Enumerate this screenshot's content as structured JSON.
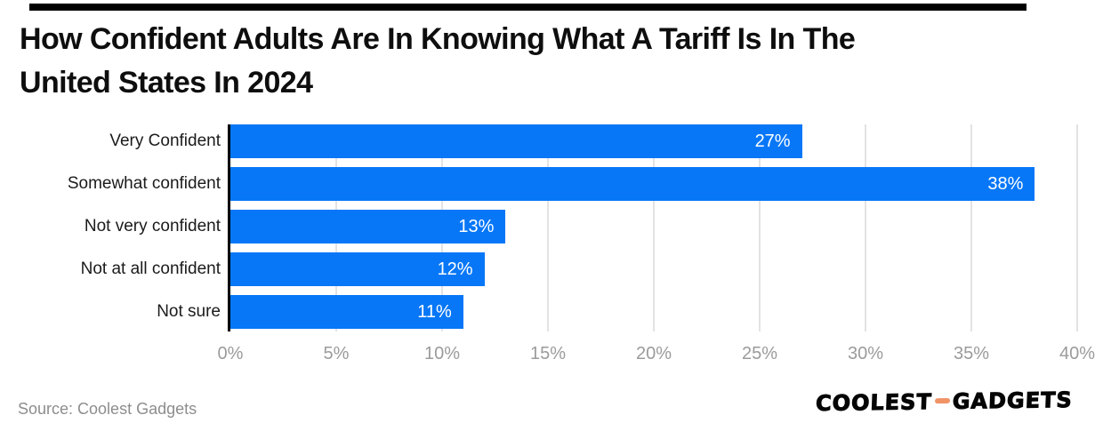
{
  "title_lines": [
    "How Confident Adults Are In Knowing What A Tariff Is In The",
    "United States In 2024"
  ],
  "chart_data": {
    "type": "bar",
    "orientation": "horizontal",
    "title": "How Confident Adults Are In Knowing What A Tariff Is In The United States In 2024",
    "categories": [
      "Very Confident",
      "Somewhat confident",
      "Not very confident",
      "Not at all confident",
      "Not sure"
    ],
    "values": [
      27,
      38,
      13,
      12,
      11
    ],
    "value_labels": [
      "27%",
      "38%",
      "13%",
      "12%",
      "11%"
    ],
    "xlabel": "",
    "ylabel": "",
    "xlim": [
      0,
      40
    ],
    "x_ticks": [
      0,
      5,
      10,
      15,
      20,
      25,
      30,
      35,
      40
    ],
    "x_tick_labels": [
      "0%",
      "5%",
      "10%",
      "15%",
      "20%",
      "25%",
      "30%",
      "35%",
      "40%"
    ],
    "grid": true,
    "legend": false,
    "bar_color": "#0777f7",
    "gridline_color": "#e3e3e3",
    "axis_line_color": "#000000",
    "tick_label_color": "#9b9b9b",
    "value_label_color": "#ffffff"
  },
  "footer": {
    "source": "Source: Coolest Gadgets",
    "logo_left": "COOLEST",
    "logo_right": "GADGETS",
    "logo_dash_color": "#f09468"
  }
}
